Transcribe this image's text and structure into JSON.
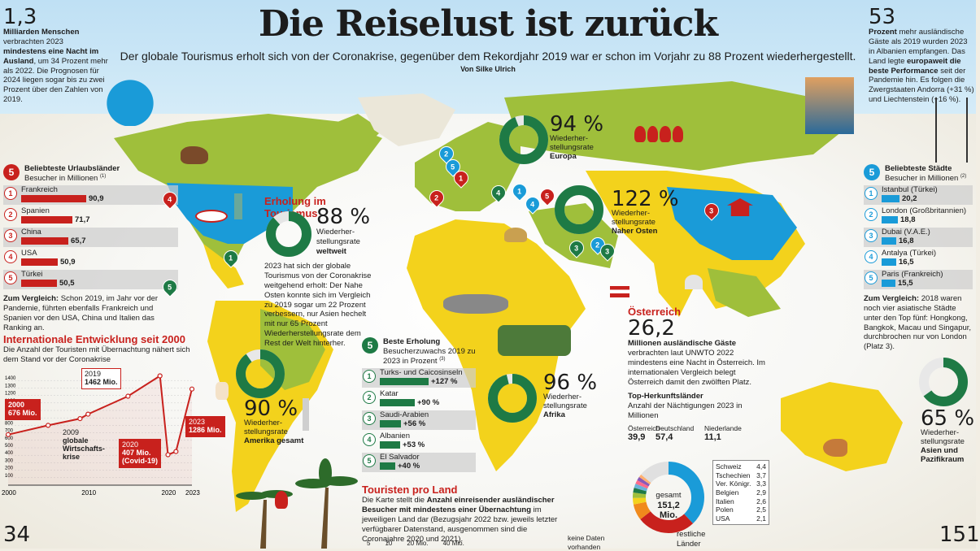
{
  "header": {
    "title": "Die Reiselust ist zurück",
    "subtitle": "Der globale Tourismus erholt sich von der Coronakrise, gegenüber dem Rekordjahr 2019 war er schon im Vorjahr zu 88 Prozent wiederhergestellt.",
    "byline": "Von Silke Ulrich"
  },
  "stat_left": {
    "number": "1,3",
    "bold": "Milliarden Menschen",
    "text1": "verbrachten 2023",
    "bold2": "mindestens eine Nacht im Ausland",
    "text2": ", um 34 Prozent mehr als 2022. Die Prognosen für 2024 liegen sogar bis zu zwei Prozent über den Zahlen von 2019."
  },
  "stat_right": {
    "number": "53",
    "bold": "Prozent",
    "text1": "mehr ausländische Gäste als 2019 wurden 2023 in Albanien empfangen. Das Land legte",
    "bold2": "europaweit die beste Performance",
    "text2": "seit der Pandemie hin. Es folgen die Zwergstaaten Andorra (+31 %) und Liechtenstein (+16 %)."
  },
  "countries_rank": {
    "badge": "5",
    "title": "Beliebteste Urlaubsländer",
    "unit": "Besucher in Millionen",
    "footnote": "(1)",
    "items": [
      {
        "rank": "1",
        "name": "Frankreich",
        "value": 90.9,
        "label": "90,9"
      },
      {
        "rank": "2",
        "name": "Spanien",
        "value": 71.7,
        "label": "71,7"
      },
      {
        "rank": "3",
        "name": "China",
        "value": 65.7,
        "label": "65,7"
      },
      {
        "rank": "4",
        "name": "USA",
        "value": 50.9,
        "label": "50,9"
      },
      {
        "rank": "5",
        "name": "Türkei",
        "value": 50.5,
        "label": "50,5"
      }
    ],
    "note_bold": "Zum Vergleich:",
    "note": "Schon 2019, im Jahr vor der Pandemie, führten ebenfalls Frankreich und Spanien vor den USA, China und Italien das Ranking an."
  },
  "cities_rank": {
    "badge": "5",
    "title": "Beliebteste Städte",
    "unit": "Besucher in Millionen",
    "footnote": "(2)",
    "items": [
      {
        "rank": "1",
        "name": "Istanbul",
        "country": "(Türkei)",
        "value": 20.2,
        "label": "20,2"
      },
      {
        "rank": "2",
        "name": "London",
        "country": "(Großbritannien)",
        "value": 18.8,
        "label": "18,8"
      },
      {
        "rank": "3",
        "name": "Dubai",
        "country": "(V.A.E.)",
        "value": 16.8,
        "label": "16,8"
      },
      {
        "rank": "4",
        "name": "Antalya",
        "country": "(Türkei)",
        "value": 16.5,
        "label": "16,5"
      },
      {
        "rank": "5",
        "name": "Paris",
        "country": "(Frankreich)",
        "value": 15.5,
        "label": "15,5"
      }
    ],
    "note_bold": "Zum Vergleich:",
    "note": "2018 waren noch vier asiatische Städte unter den Top fünf: Hongkong, Bangkok, Macau und Singapur, durchbrochen nur von London (Platz 3)."
  },
  "growth_rank": {
    "badge": "5",
    "title": "Beste Erholung",
    "unit": "Besucherzuwachs 2019 zu 2023 in Prozent",
    "footnote": "(3)",
    "items": [
      {
        "rank": "1",
        "name": "Turks- und Caicosinseln",
        "value": 127,
        "label": "+127 %"
      },
      {
        "rank": "2",
        "name": "Katar",
        "value": 90,
        "label": "+90 %"
      },
      {
        "rank": "3",
        "name": "Saudi-Arabien",
        "value": 56,
        "label": "+56 %"
      },
      {
        "rank": "4",
        "name": "Albanien",
        "value": 53,
        "label": "+53 %"
      },
      {
        "rank": "5",
        "name": "El Salvador",
        "value": 40,
        "label": "+40 %"
      }
    ]
  },
  "recovery": {
    "title": "Erholung im Tourismus",
    "pct": "88 %",
    "value": 88,
    "label1": "Wiederher-",
    "label2": "stellungsrate",
    "label3": "weltweit",
    "text": "2023 hat sich der globale Tourismus von der Coronakrise weitgehend erholt: Der Nahe Osten konnte sich im Vergleich zu 2019 sogar um 22 Prozent verbessern, nur Asien hechelt mit nur 65 Prozent Wiederherstellungsrate dem Rest der Welt hinterher."
  },
  "regions": [
    {
      "pct": "94 %",
      "value": 94,
      "l1": "Wiederher-",
      "l2": "stellungsrate",
      "region": "Europa"
    },
    {
      "pct": "122 %",
      "value": 122,
      "l1": "Wiederher-",
      "l2": "stellungsrate",
      "region": "Naher Osten"
    },
    {
      "pct": "90 %",
      "value": 90,
      "l1": "Wiederher-",
      "l2": "stellungsrate",
      "region": "Amerika gesamt"
    },
    {
      "pct": "96 %",
      "value": 96,
      "l1": "Wiederher-",
      "l2": "stellungsrate",
      "region": "Afrika"
    },
    {
      "pct": "65 %",
      "value": 65,
      "l1": "Wiederher-",
      "l2": "stellungsrate",
      "region": "Asien und Pazifikraum"
    }
  ],
  "intl_chart": {
    "title": "Internationale Entwicklung seit 2000",
    "text": "Die Anzahl der Touristen mit Übernachtung nähert sich dem Stand vor der Coronakrise",
    "chart_data": {
      "type": "line",
      "x": [
        2000,
        2005,
        2009,
        2010,
        2015,
        2019,
        2020,
        2021,
        2023
      ],
      "y": [
        676,
        800,
        890,
        950,
        1190,
        1462,
        407,
        450,
        1286
      ],
      "xticks": [
        "2000",
        "2010",
        "2020",
        "2023"
      ],
      "yticks": [
        "100",
        "200",
        "300",
        "400",
        "500",
        "600",
        "700",
        "800",
        "900",
        "1000",
        "1100",
        "1200",
        "1300",
        "1400"
      ],
      "ylim": [
        0,
        1500
      ]
    },
    "callouts": {
      "y2000": "2000",
      "v2000": "676 Mio.",
      "y2019": "2019",
      "v2019": "1462 Mio.",
      "y2009": "2009",
      "t2009a": "globale",
      "t2009b": "Wirtschafts-",
      "t2009c": "krise",
      "y2020": "2020",
      "v2020": "407 Mio.",
      "t2020": "(Covid-19)",
      "y2023": "2023",
      "v2023": "1286 Mio."
    }
  },
  "austria": {
    "title": "Österreich",
    "number": "26,2",
    "bold": "Millionen ausländische Gäste",
    "text": "verbrachten laut UNWTO 2022 mindestens eine Nacht in Österreich. Im internationalen Vergleich belegt Österreich damit den zwölften Platz.",
    "herk_title": "Top-Herkunftsländer",
    "herk_sub": "Anzahl der Nächtigungen 2023 in Millionen",
    "big": [
      {
        "name": "Deutschland",
        "value": "57,4"
      },
      {
        "name": "Österreich",
        "value": "39,9"
      },
      {
        "name": "Niederlande",
        "value": "11,1"
      }
    ],
    "total_label": "gesamt",
    "total_value": "151,2 Mio.",
    "rest_label": "restliche Länder",
    "small": [
      {
        "name": "Schweiz",
        "value": "4,4"
      },
      {
        "name": "Tschechien",
        "value": "3,7"
      },
      {
        "name": "Ver. Königr.",
        "value": "3,3"
      },
      {
        "name": "Belgien",
        "value": "2,9"
      },
      {
        "name": "Italien",
        "value": "2,6"
      },
      {
        "name": "Polen",
        "value": "2,5"
      },
      {
        "name": "USA",
        "value": "2,1"
      }
    ]
  },
  "tourists_per_country": {
    "title": "Touristen pro Land",
    "text1": "Die Karte stellt die",
    "bold": "Anzahl einreisender ausländischer Besucher mit mindestens einer Übernachtung",
    "text2": "im jeweiligen Land dar (Bezugsjahr 2022 bzw. jeweils letzter verfügbarer Datenstand, ausgenommen sind die Coronajahre 2020 und 2021).",
    "legend": [
      "5",
      "10",
      "20 Mio.",
      "40 Mio."
    ],
    "nodata": "keine Daten vorhanden"
  },
  "page_numbers": {
    "left": "34",
    "right": "151"
  },
  "icons": [
    "surfer-icon",
    "bear-icon",
    "statue-of-liberty-icon",
    "las-vegas-sign-icon",
    "matryoshka-icon",
    "pagoda-icon",
    "camel-icon",
    "elephant-icon",
    "safari-jeep-icon",
    "kangaroo-icon",
    "palm-tree-icon",
    "parrot-icon",
    "christ-redeemer-icon",
    "llama-icon",
    "bridge-icon",
    "hiker-icon",
    "austria-flag-icon",
    "taj-mahal-icon"
  ],
  "colors": {
    "red": "#c8211d",
    "blue": "#1a9bd8",
    "green": "#1e7a45",
    "lime": "#9fbf3b",
    "yellow": "#f3d21c",
    "ocean": "#ffffff"
  }
}
